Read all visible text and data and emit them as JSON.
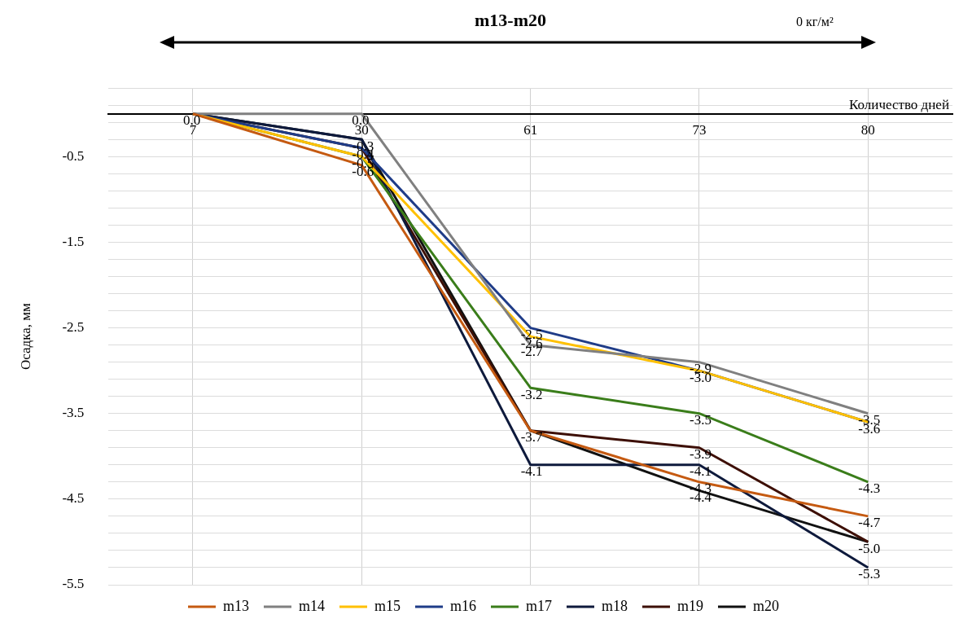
{
  "chart_data": {
    "type": "line",
    "title": "m13-m20",
    "xlabel": "Количество дней",
    "ylabel": "Осадка, мм",
    "annotations": [
      "0 кг/м²"
    ],
    "categories": [
      "7",
      "30",
      "61",
      "73",
      "80"
    ],
    "series": [
      {
        "name": "m13",
        "color": "#c55a11",
        "values": [
          0.0,
          -0.6,
          -3.7,
          -4.3,
          -4.7
        ],
        "value_labels": [
          "0.0",
          "-0.6",
          null,
          "-4.3",
          "-4.7"
        ]
      },
      {
        "name": "m14",
        "color": "#808080",
        "values": [
          0.0,
          0.0,
          -2.7,
          -2.9,
          -3.5
        ],
        "value_labels": [
          null,
          "0.0",
          "-2.7",
          "-2.9",
          "-3.5"
        ]
      },
      {
        "name": "m15",
        "color": "#ffc000",
        "values": [
          0.0,
          -0.5,
          -2.6,
          -3.0,
          -3.6
        ],
        "value_labels": [
          null,
          null,
          "-2.6",
          null,
          null
        ]
      },
      {
        "name": "m16",
        "color": "#1f3c88",
        "values": [
          0.0,
          -0.4,
          -2.5,
          -3.0,
          -3.6
        ],
        "value_labels": [
          null,
          null,
          "-2.5",
          "-3.0",
          "-3.6"
        ]
      },
      {
        "name": "m17",
        "color": "#3a7d1a",
        "values": [
          0.0,
          -0.5,
          -3.2,
          -3.5,
          -4.3
        ],
        "value_labels": [
          null,
          "-0.5",
          "-3.2",
          "-3.5",
          "-4.3"
        ]
      },
      {
        "name": "m18",
        "color": "#0e1a3c",
        "values": [
          0.0,
          -0.3,
          -4.1,
          -4.1,
          -5.3
        ],
        "value_labels": [
          null,
          null,
          "-4.1",
          "-4.1",
          "-5.3"
        ]
      },
      {
        "name": "m19",
        "color": "#3d0f05",
        "values": [
          0.0,
          -0.4,
          -3.7,
          -3.9,
          -5.0
        ],
        "value_labels": [
          null,
          "-0.4",
          null,
          "-3.9",
          null
        ]
      },
      {
        "name": "m20",
        "color": "#111111",
        "values": [
          0.0,
          -0.3,
          -3.7,
          -4.4,
          -5.0
        ],
        "value_labels": [
          null,
          "-0.3",
          "-3.7",
          "-4.4",
          "-5.0"
        ]
      }
    ],
    "ylim": [
      -5.5,
      0.3
    ],
    "yticks": [
      -5.5,
      {
        "value": -5.3,
        "label": null
      },
      {
        "value": -5.1,
        "label": null
      },
      {
        "value": -4.9,
        "label": null
      },
      {
        "value": -4.7,
        "label": null
      },
      -4.5,
      {
        "value": -4.3,
        "label": null
      },
      {
        "value": -4.1,
        "label": null
      },
      {
        "value": -3.9,
        "label": null
      },
      {
        "value": -3.7,
        "label": null
      },
      -3.5,
      {
        "value": -3.3,
        "label": null
      },
      {
        "value": -3.1,
        "label": null
      },
      {
        "value": -2.9,
        "label": null
      },
      {
        "value": -2.7,
        "label": null
      },
      -2.5,
      {
        "value": -2.3,
        "label": null
      },
      {
        "value": -2.1,
        "label": null
      },
      {
        "value": -1.9,
        "label": null
      },
      {
        "value": -1.7,
        "label": null
      },
      -1.5,
      {
        "value": -1.3,
        "label": null
      },
      {
        "value": -1.1,
        "label": null
      },
      {
        "value": -0.9,
        "label": null
      },
      {
        "value": -0.7,
        "label": null
      },
      -0.5,
      {
        "value": -0.3,
        "label": null
      },
      {
        "value": -0.1,
        "label": null
      },
      {
        "value": 0.1,
        "label": null
      },
      {
        "value": 0.3,
        "label": null
      }
    ],
    "grid": true,
    "legend": "bottom",
    "marker": "none",
    "line_style": "solid"
  }
}
